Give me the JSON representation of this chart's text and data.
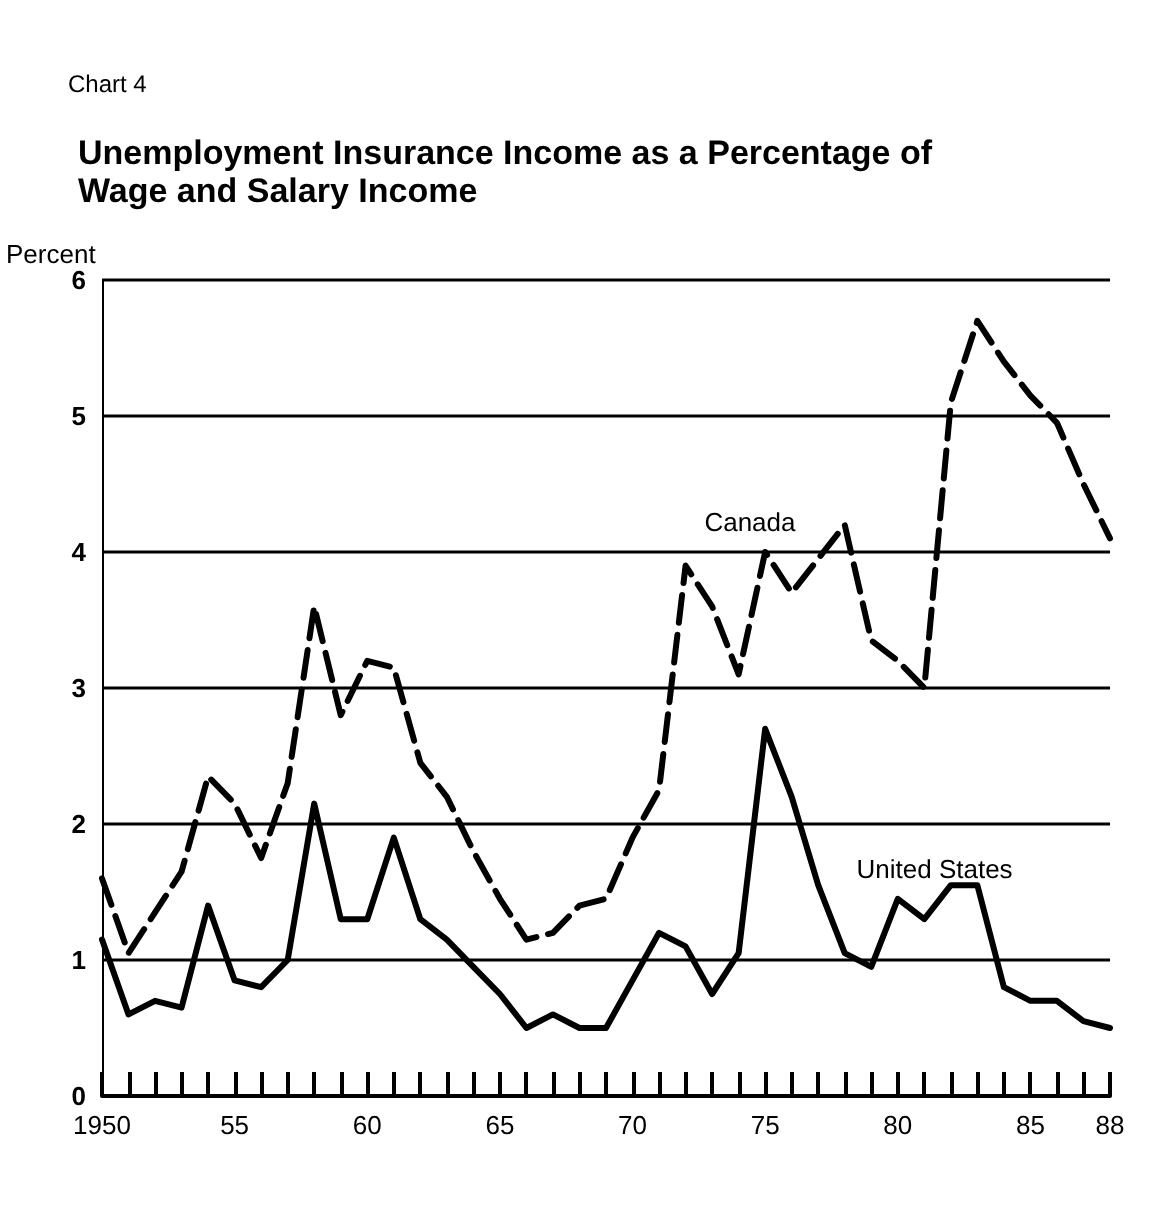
{
  "chart_data": {
    "type": "line",
    "title": "Unemployment Insurance Income as a Percentage of Wage and Salary Income",
    "ylabel": "Percent",
    "annotations": [
      "Chart 4"
    ],
    "x": [
      1950,
      1951,
      1952,
      1953,
      1954,
      1955,
      1956,
      1957,
      1958,
      1959,
      1960,
      1961,
      1962,
      1963,
      1964,
      1965,
      1966,
      1967,
      1968,
      1969,
      1970,
      1971,
      1972,
      1973,
      1974,
      1975,
      1976,
      1977,
      1978,
      1979,
      1980,
      1981,
      1982,
      1983,
      1984,
      1985,
      1986,
      1987,
      1988
    ],
    "series": [
      {
        "name": "Canada",
        "color": "#000000",
        "line_style": "dashed",
        "values": [
          1.6,
          1.05,
          1.35,
          1.65,
          2.35,
          2.15,
          1.75,
          2.3,
          3.6,
          2.8,
          3.2,
          3.15,
          2.45,
          2.2,
          1.8,
          1.45,
          1.15,
          1.2,
          1.4,
          1.45,
          1.9,
          2.25,
          3.9,
          3.6,
          3.1,
          4.0,
          3.7,
          3.95,
          4.2,
          3.35,
          3.2,
          3.0,
          5.1,
          5.7,
          5.4,
          5.15,
          4.95,
          4.5,
          4.1
        ]
      },
      {
        "name": "United States",
        "color": "#000000",
        "line_style": "solid",
        "values": [
          1.15,
          0.6,
          0.7,
          0.65,
          1.4,
          0.85,
          0.8,
          1.0,
          2.15,
          1.3,
          1.3,
          1.9,
          1.3,
          1.15,
          0.95,
          0.75,
          0.5,
          0.6,
          0.5,
          0.5,
          0.85,
          1.2,
          1.1,
          0.75,
          1.05,
          2.7,
          2.2,
          1.55,
          1.05,
          0.95,
          1.45,
          1.3,
          1.55,
          1.55,
          0.8,
          0.7,
          0.7,
          0.55,
          0.5
        ]
      }
    ],
    "xlim": [
      1950,
      1988
    ],
    "xticks": [
      1950,
      {
        "value": 1951,
        "label": null
      },
      {
        "value": 1952,
        "label": null
      },
      {
        "value": 1953,
        "label": null
      },
      {
        "value": 1954,
        "label": null
      },
      {
        "value": 1955,
        "label": "55"
      },
      {
        "value": 1956,
        "label": null
      },
      {
        "value": 1957,
        "label": null
      },
      {
        "value": 1958,
        "label": null
      },
      {
        "value": 1959,
        "label": null
      },
      {
        "value": 1960,
        "label": "60"
      },
      {
        "value": 1961,
        "label": null
      },
      {
        "value": 1962,
        "label": null
      },
      {
        "value": 1963,
        "label": null
      },
      {
        "value": 1964,
        "label": null
      },
      {
        "value": 1965,
        "label": "65"
      },
      {
        "value": 1966,
        "label": null
      },
      {
        "value": 1967,
        "label": null
      },
      {
        "value": 1968,
        "label": null
      },
      {
        "value": 1969,
        "label": null
      },
      {
        "value": 1970,
        "label": "70"
      },
      {
        "value": 1971,
        "label": null
      },
      {
        "value": 1972,
        "label": null
      },
      {
        "value": 1973,
        "label": null
      },
      {
        "value": 1974,
        "label": null
      },
      {
        "value": 1975,
        "label": "75"
      },
      {
        "value": 1976,
        "label": null
      },
      {
        "value": 1977,
        "label": null
      },
      {
        "value": 1978,
        "label": null
      },
      {
        "value": 1979,
        "label": null
      },
      {
        "value": 1980,
        "label": "80"
      },
      {
        "value": 1981,
        "label": null
      },
      {
        "value": 1982,
        "label": null
      },
      {
        "value": 1983,
        "label": null
      },
      {
        "value": 1984,
        "label": null
      },
      {
        "value": 1985,
        "label": "85"
      },
      {
        "value": 1986,
        "label": null
      },
      {
        "value": 1987,
        "label": null
      },
      {
        "value": 1988,
        "label": "88"
      }
    ],
    "ylim": [
      0,
      6
    ],
    "yticks": [
      0,
      1,
      2,
      3,
      4,
      5,
      6
    ],
    "grid": "y",
    "legend": false,
    "marker": "none"
  }
}
